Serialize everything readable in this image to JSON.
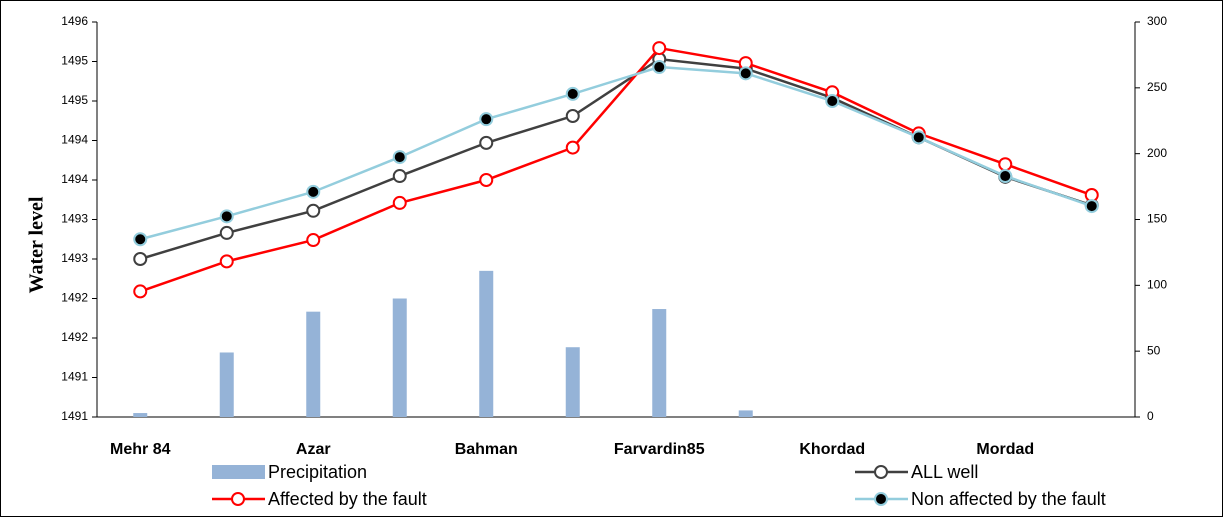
{
  "chart_data": {
    "type": "combo",
    "y_label": "Water level",
    "categories": [
      "Mehr 84",
      null,
      "Azar",
      null,
      "Bahman",
      null,
      "Farvardin85",
      null,
      "Khordad",
      null,
      "Mordad",
      null
    ],
    "ylim": [
      1491,
      1496
    ],
    "yticks": [
      1491,
      {
        "value": 1491.5,
        "label": "1491"
      },
      1492,
      {
        "value": 1492.5,
        "label": "1492"
      },
      1493,
      {
        "value": 1493.5,
        "label": "1493"
      },
      1494,
      {
        "value": 1494.5,
        "label": "1494"
      },
      1495,
      {
        "value": 1495.5,
        "label": "1495"
      },
      1496
    ],
    "y2lim": [
      0,
      300
    ],
    "y2ticks": [
      0,
      50,
      100,
      150,
      200,
      250,
      300
    ],
    "series": [
      {
        "name": "Precipitation",
        "type": "bar",
        "axis": "y2",
        "color": "#95b3d7",
        "values": [
          3,
          49,
          80,
          90,
          111,
          53,
          82,
          5,
          0,
          0,
          0,
          0
        ]
      },
      {
        "name": "ALL well",
        "type": "line",
        "color": "#404040",
        "marker_fill": "#ffffff",
        "values": [
          1493.0,
          1493.33,
          1493.61,
          1494.05,
          1494.47,
          1494.81,
          1495.53,
          1495.41,
          1495.04,
          1494.54,
          1494.04,
          1493.68
        ]
      },
      {
        "name": "Affected by the fault",
        "type": "line",
        "color": "#ff0000",
        "marker_fill": "#ffffff",
        "values": [
          1492.59,
          1492.97,
          1493.24,
          1493.71,
          1494.0,
          1494.41,
          1495.67,
          1495.48,
          1495.11,
          1494.59,
          1494.2,
          1493.81
        ]
      },
      {
        "name": "Non affected by the fault",
        "type": "line",
        "color": "#93cddd",
        "marker_fill": "#000000",
        "values": [
          1493.25,
          1493.54,
          1493.85,
          1494.29,
          1494.77,
          1495.09,
          1495.43,
          1495.35,
          1495.0,
          1494.54,
          1494.05,
          1493.67
        ]
      }
    ]
  }
}
